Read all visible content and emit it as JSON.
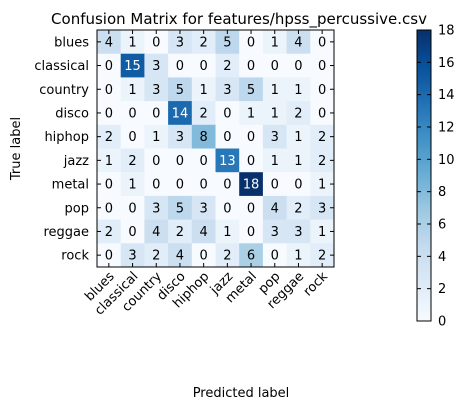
{
  "chart_data": {
    "type": "heatmap",
    "title": "Confusion Matrix for features/hpss_percussive.csv",
    "xlabel": "Predicted label",
    "ylabel": "True label",
    "categories": [
      "blues",
      "classical",
      "country",
      "disco",
      "hiphop",
      "jazz",
      "metal",
      "pop",
      "reggae",
      "rock"
    ],
    "matrix": [
      [
        4,
        1,
        0,
        3,
        2,
        5,
        0,
        1,
        4,
        0
      ],
      [
        0,
        15,
        3,
        0,
        0,
        2,
        0,
        0,
        0,
        0
      ],
      [
        0,
        1,
        3,
        5,
        1,
        3,
        5,
        1,
        1,
        0
      ],
      [
        0,
        0,
        0,
        14,
        2,
        0,
        1,
        1,
        2,
        0
      ],
      [
        2,
        0,
        1,
        3,
        8,
        0,
        0,
        3,
        1,
        2
      ],
      [
        1,
        2,
        0,
        0,
        0,
        13,
        0,
        1,
        1,
        2
      ],
      [
        0,
        1,
        0,
        0,
        0,
        0,
        18,
        0,
        0,
        1
      ],
      [
        0,
        0,
        3,
        5,
        3,
        0,
        0,
        4,
        2,
        3
      ],
      [
        2,
        0,
        4,
        2,
        4,
        1,
        0,
        3,
        3,
        1
      ],
      [
        0,
        3,
        2,
        4,
        0,
        2,
        6,
        0,
        1,
        2
      ]
    ],
    "colorbar": {
      "min": 0,
      "max": 18,
      "ticks": [
        0,
        2,
        4,
        6,
        8,
        10,
        12,
        14,
        16,
        18
      ],
      "colormap": "Blues",
      "low_color": "#f7fbff",
      "high_color": "#08306b"
    },
    "grid": false
  }
}
